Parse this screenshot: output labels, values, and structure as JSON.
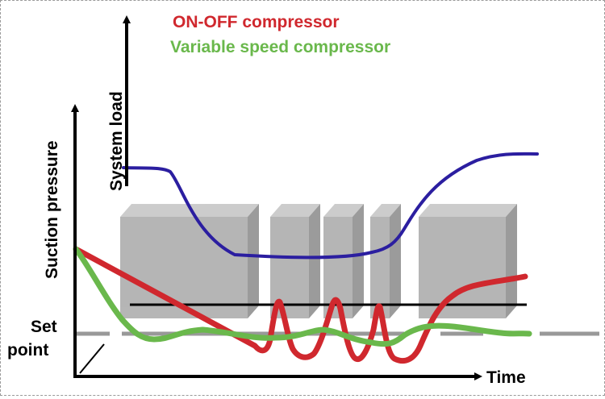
{
  "legend": {
    "onoff": {
      "label": "ON-OFF compressor",
      "color": "#d0282e"
    },
    "variable": {
      "label": "Variable speed compressor",
      "color": "#6ab84c"
    }
  },
  "axes": {
    "system_load": "System load",
    "suction_pressure": "Suction pressure",
    "time": "Time",
    "set_point_line1": "Set",
    "set_point_line2": "point"
  },
  "colors": {
    "system_load_curve": "#2b1ea0",
    "blocks": "#a8a8a8",
    "setpoint_line": "#999999",
    "axes": "#000000"
  }
}
